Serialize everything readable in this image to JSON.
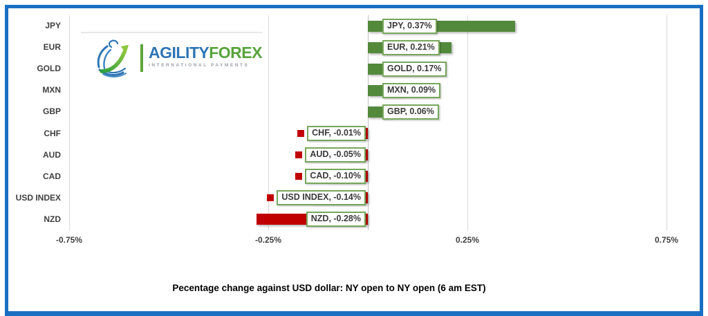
{
  "frame": {
    "border_color": "#1a6fc3"
  },
  "logo": {
    "brand_primary": "AGILITY",
    "brand_secondary": "FOREX",
    "tagline": "INTERNATIONAL PAYMENTS",
    "colors": {
      "blue": "#2e74b5",
      "green": "#58a33c"
    }
  },
  "chart_data": {
    "type": "bar",
    "orientation": "horizontal",
    "categories": [
      "JPY",
      "EUR",
      "GOLD",
      "MXN",
      "GBP",
      "CHF",
      "AUD",
      "CAD",
      "USD INDEX",
      "NZD"
    ],
    "values": [
      0.37,
      0.21,
      0.17,
      0.09,
      0.06,
      -0.01,
      -0.05,
      -0.1,
      -0.14,
      -0.28
    ],
    "data_labels": [
      "JPY, 0.37%",
      "EUR, 0.21%",
      "GOLD, 0.17%",
      "MXN, 0.09%",
      "GBP, 0.06%",
      "CHF, -0.01%",
      "AUD, -0.05%",
      "CAD, -0.10%",
      "USD INDEX, -0.14%",
      "NZD, -0.28%"
    ],
    "x_ticks": [
      "-0.75%",
      "-0.25%",
      "0.25%",
      "0.75%"
    ],
    "xlim": [
      -0.75,
      0.75
    ],
    "gridlines": true,
    "positive_color": "#53893b",
    "negative_color": "#c00000",
    "label_border_color": "#76a65b",
    "gridline_color": "#d9d9d9",
    "axis_line_color": "#bfbfbf",
    "title": "Pecentage change against USD dollar:  NY open to NY open  (6 am EST)",
    "legend_position": "none"
  }
}
